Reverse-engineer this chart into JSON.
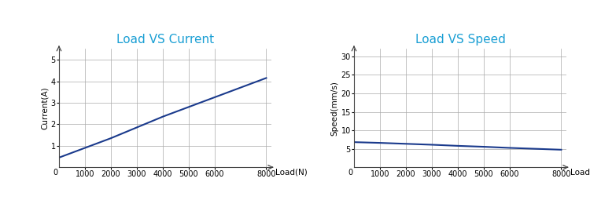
{
  "title1": "Load VS Current",
  "title2": "Load VS Speed",
  "title_color": "#1a9fd4",
  "title_fontsize": 11,
  "xlabel": "Load(N)",
  "ylabel1": "Current(A)",
  "ylabel2": "Speed(mm/s)",
  "axis_label_fontsize": 7.5,
  "tick_fontsize": 7,
  "line_color": "#1a3a8c",
  "line_width": 1.5,
  "chart1_x": [
    0,
    1000,
    2000,
    3000,
    4000,
    5000,
    6000,
    7000,
    8000
  ],
  "chart1_y": [
    0.45,
    0.9,
    1.35,
    1.85,
    2.35,
    2.8,
    3.25,
    3.7,
    4.15
  ],
  "chart2_x": [
    0,
    1000,
    2000,
    3000,
    4000,
    5000,
    6000,
    7000,
    8000
  ],
  "chart2_y": [
    6.8,
    6.6,
    6.35,
    6.1,
    5.8,
    5.55,
    5.25,
    5.0,
    4.75
  ],
  "xlim1": [
    0,
    8200
  ],
  "xlim2": [
    0,
    8200
  ],
  "ylim1": [
    0,
    5.5
  ],
  "ylim2": [
    0,
    32
  ],
  "xticks": [
    1000,
    2000,
    3000,
    4000,
    5000,
    6000,
    8000
  ],
  "xtick_labels": [
    "1000",
    "2000",
    "3000",
    "4000",
    "5000",
    "6000",
    "8000"
  ],
  "yticks1": [
    1,
    2,
    3,
    4,
    5
  ],
  "ytick_labels1": [
    "1",
    "2",
    "3",
    "4",
    "5"
  ],
  "yticks2": [
    5,
    10,
    15,
    20,
    25,
    30
  ],
  "ytick_labels2": [
    "5",
    "10",
    "15",
    "20",
    "25",
    "30"
  ],
  "grid_color": "#aaaaaa",
  "grid_lw": 0.5,
  "spine_color": "#444444",
  "bg_color": "#ffffff"
}
